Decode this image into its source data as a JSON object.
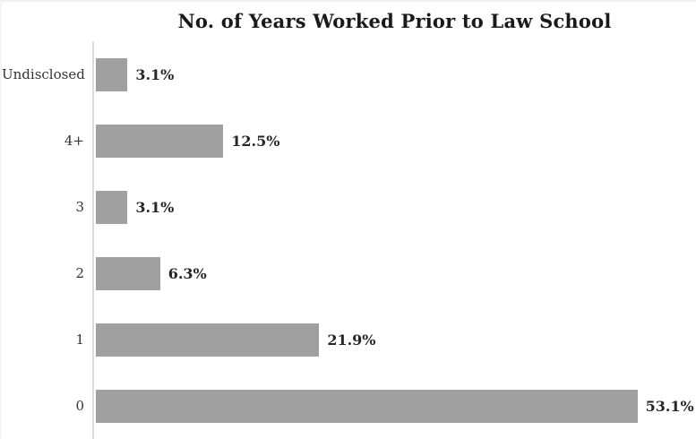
{
  "chart_data": {
    "type": "bar",
    "orientation": "horizontal",
    "title": "No. of Years Worked Prior to Law School",
    "categories": [
      "Undisclosed",
      "4+",
      "3",
      "2",
      "1",
      "0"
    ],
    "values": [
      3.1,
      12.5,
      3.1,
      6.3,
      21.9,
      53.1
    ],
    "value_labels": [
      "3.1%",
      "12.5%",
      "3.1%",
      "6.3%",
      "21.9%",
      "53.1%"
    ],
    "xlabel": "",
    "ylabel": "",
    "xlim": [
      0,
      59.2
    ],
    "grid": false,
    "legend": false,
    "bar_color": "#a0a0a0",
    "axis_color": "#dcdcdc",
    "title_color": "#1a1a1a",
    "label_color": "#333333",
    "value_color": "#262626"
  }
}
